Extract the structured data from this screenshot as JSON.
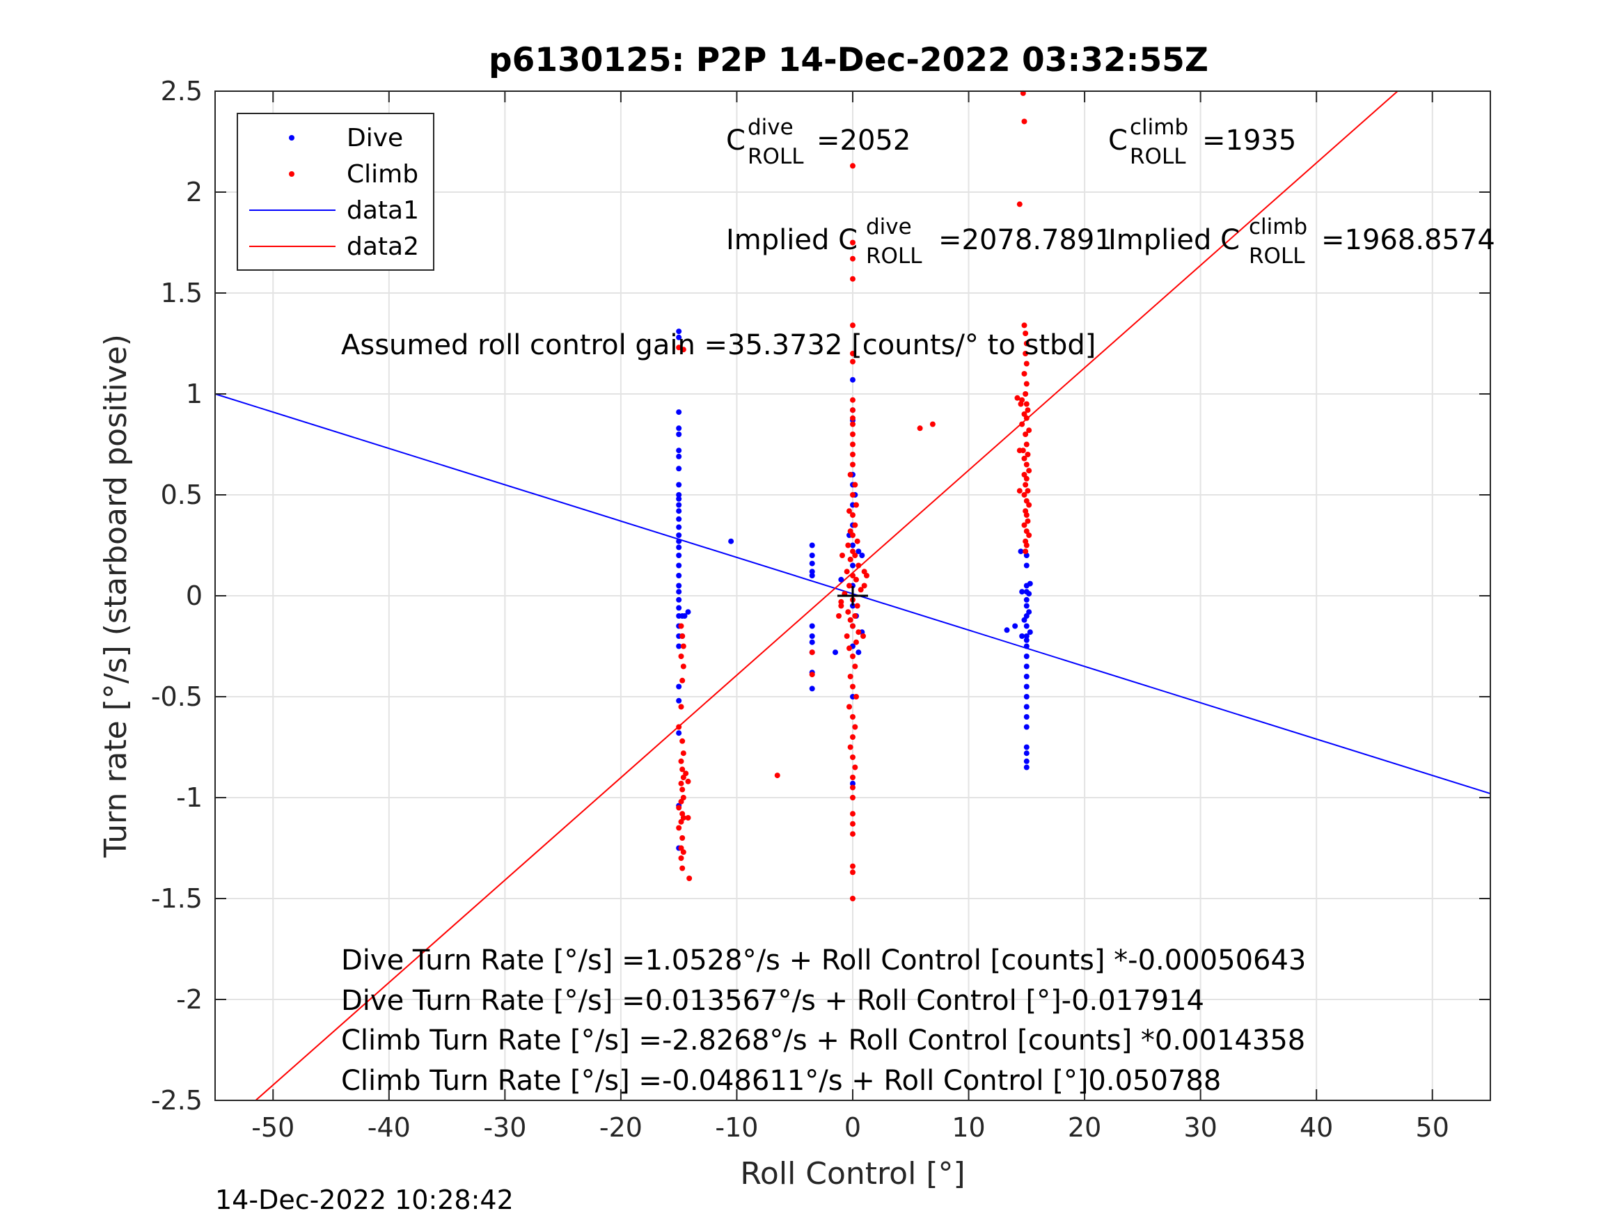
{
  "chart_data": {
    "type": "scatter",
    "title": "p6130125: P2P 14-Dec-2022 03:32:55Z",
    "xlabel": "Roll Control [°]",
    "ylabel": "Turn rate [°/s] (starboard positive)",
    "xlim": [
      -55,
      55
    ],
    "ylim": [
      -2.5,
      2.5
    ],
    "grid": true,
    "legend_position": "top-left",
    "xticks": [
      -50,
      -40,
      -30,
      -20,
      -10,
      0,
      10,
      20,
      30,
      40,
      50
    ],
    "xtick_labels": [
      "-50",
      "-40",
      "-30",
      "-20",
      "-10",
      "0",
      "10",
      "20",
      "30",
      "40",
      "50"
    ],
    "yticks": [
      -2.5,
      -2,
      -1.5,
      -1,
      -0.5,
      0,
      0.5,
      1,
      1.5,
      2,
      2.5
    ],
    "ytick_labels": [
      "-2.5",
      "-2",
      "-1.5",
      "-1",
      "-0.5",
      "0",
      "0.5",
      "1",
      "1.5",
      "2",
      "2.5"
    ],
    "series": [
      {
        "name": "Dive",
        "kind": "points",
        "color": "#0000ff",
        "points": [
          [
            -15,
            1.31
          ],
          [
            -15,
            1.28
          ],
          [
            -15,
            0.91
          ],
          [
            -15,
            0.83
          ],
          [
            -15,
            0.8
          ],
          [
            -15,
            0.72
          ],
          [
            -15,
            0.69
          ],
          [
            -15,
            0.63
          ],
          [
            -15,
            0.55
          ],
          [
            -15,
            0.5
          ],
          [
            -15,
            0.48
          ],
          [
            -15,
            0.45
          ],
          [
            -15,
            0.42
          ],
          [
            -15,
            0.38
          ],
          [
            -15,
            0.34
          ],
          [
            -15,
            0.3
          ],
          [
            -15,
            0.27
          ],
          [
            -15,
            0.24
          ],
          [
            -15,
            0.2
          ],
          [
            -15,
            0.15
          ],
          [
            -15,
            0.1
          ],
          [
            -15,
            0.05
          ],
          [
            -15,
            0.02
          ],
          [
            -15,
            -0.02
          ],
          [
            -15,
            -0.06
          ],
          [
            -15,
            -0.1
          ],
          [
            -15,
            -0.15
          ],
          [
            -15,
            -0.2
          ],
          [
            -15,
            -0.25
          ],
          [
            -14.7,
            -0.1
          ],
          [
            -14.7,
            -0.2
          ],
          [
            -15,
            -0.45
          ],
          [
            -15,
            -0.52
          ],
          [
            -15,
            -0.68
          ],
          [
            -15,
            -1.04
          ],
          [
            -15,
            -1.25
          ],
          [
            -14.5,
            -0.1
          ],
          [
            -14.2,
            -0.08
          ],
          [
            -10.5,
            0.27
          ],
          [
            -3.5,
            0.25
          ],
          [
            -3.5,
            0.2
          ],
          [
            -3.5,
            0.16
          ],
          [
            -3.5,
            0.12
          ],
          [
            -3.5,
            0.1
          ],
          [
            -3.5,
            -0.15
          ],
          [
            -3.5,
            -0.2
          ],
          [
            -3.5,
            -0.23
          ],
          [
            -3.5,
            -0.28
          ],
          [
            -3.5,
            -0.38
          ],
          [
            -3.5,
            -0.46
          ],
          [
            -1.5,
            -0.28
          ],
          [
            -1,
            0.08
          ],
          [
            0,
            1.07
          ],
          [
            0,
            0.92
          ],
          [
            0,
            0.87
          ],
          [
            0,
            0.6
          ],
          [
            0,
            0.55
          ],
          [
            0,
            0.45
          ],
          [
            0,
            0.35
          ],
          [
            0,
            0.25
          ],
          [
            0,
            0.15
          ],
          [
            0,
            0.05
          ],
          [
            0,
            -0.05
          ],
          [
            0,
            -0.15
          ],
          [
            0,
            -0.25
          ],
          [
            0,
            -0.5
          ],
          [
            0,
            -0.93
          ],
          [
            0.5,
            0.22
          ],
          [
            0.8,
            0.2
          ],
          [
            0.5,
            -0.28
          ],
          [
            0.8,
            -0.18
          ],
          [
            0.2,
            0.5
          ],
          [
            -0.3,
            0.3
          ],
          [
            0.3,
            -0.1
          ],
          [
            14.5,
            0.22
          ],
          [
            15,
            0.2
          ],
          [
            15,
            0.15
          ],
          [
            15,
            0.05
          ],
          [
            15,
            0.02
          ],
          [
            14.6,
            0.02
          ],
          [
            15.3,
            0.06
          ],
          [
            15.2,
            0.01
          ],
          [
            15,
            -0.02
          ],
          [
            15,
            -0.05
          ],
          [
            15.2,
            -0.08
          ],
          [
            15,
            -0.1
          ],
          [
            14.8,
            -0.12
          ],
          [
            15,
            -0.15
          ],
          [
            15.3,
            -0.18
          ],
          [
            15,
            -0.2
          ],
          [
            15,
            -0.22
          ],
          [
            15,
            -0.25
          ],
          [
            15,
            -0.3
          ],
          [
            15,
            -0.35
          ],
          [
            15,
            -0.4
          ],
          [
            15,
            -0.45
          ],
          [
            15,
            -0.5
          ],
          [
            15,
            -0.55
          ],
          [
            15,
            -0.6
          ],
          [
            15,
            -0.65
          ],
          [
            15,
            -0.75
          ],
          [
            15,
            -0.78
          ],
          [
            15,
            -0.82
          ],
          [
            15,
            -0.85
          ],
          [
            13.3,
            -0.17
          ],
          [
            14,
            -0.15
          ],
          [
            14.6,
            -0.2
          ]
        ]
      },
      {
        "name": "Climb",
        "kind": "points",
        "color": "#ff0000",
        "points": [
          [
            -15,
            1.23
          ],
          [
            -14.6,
            1.22
          ],
          [
            -14.8,
            -0.15
          ],
          [
            -14.7,
            -0.2
          ],
          [
            -14.6,
            -0.25
          ],
          [
            -14.8,
            -0.3
          ],
          [
            -14.6,
            -0.35
          ],
          [
            -14.7,
            -0.42
          ],
          [
            -14.8,
            -0.55
          ],
          [
            -15,
            -0.65
          ],
          [
            -14.7,
            -0.72
          ],
          [
            -14.6,
            -0.78
          ],
          [
            -14.8,
            -0.82
          ],
          [
            -14.7,
            -0.86
          ],
          [
            -14.6,
            -0.9
          ],
          [
            -14.8,
            -0.93
          ],
          [
            -14.7,
            -0.96
          ],
          [
            -14.6,
            -1.0
          ],
          [
            -14.8,
            -1.02
          ],
          [
            -15,
            -1.05
          ],
          [
            -14.7,
            -1.08
          ],
          [
            -14.6,
            -1.1
          ],
          [
            -14.8,
            -1.12
          ],
          [
            -15,
            -1.15
          ],
          [
            -14.7,
            -1.2
          ],
          [
            -14.8,
            -1.25
          ],
          [
            -14.6,
            -1.27
          ],
          [
            -14.8,
            -1.3
          ],
          [
            -14.7,
            -1.35
          ],
          [
            -14.1,
            -1.4
          ],
          [
            -14.2,
            -1.1
          ],
          [
            -14.4,
            -0.88
          ],
          [
            -14.2,
            -0.92
          ],
          [
            -6.5,
            -0.89
          ],
          [
            -3.5,
            -0.28
          ],
          [
            -3.5,
            -0.39
          ],
          [
            0,
            2.13
          ],
          [
            0,
            1.75
          ],
          [
            0,
            1.67
          ],
          [
            0,
            1.57
          ],
          [
            0,
            1.34
          ],
          [
            0,
            1.2
          ],
          [
            0,
            1.16
          ],
          [
            0,
            0.97
          ],
          [
            0,
            0.92
          ],
          [
            0,
            0.88
          ],
          [
            0,
            0.85
          ],
          [
            0,
            0.8
          ],
          [
            0,
            0.75
          ],
          [
            0,
            0.7
          ],
          [
            0,
            0.65
          ],
          [
            -0.2,
            0.6
          ],
          [
            0.2,
            0.55
          ],
          [
            0,
            0.5
          ],
          [
            0.3,
            0.45
          ],
          [
            -0.3,
            0.42
          ],
          [
            0,
            0.4
          ],
          [
            0.2,
            0.35
          ],
          [
            -0.2,
            0.32
          ],
          [
            0,
            0.3
          ],
          [
            0.4,
            0.27
          ],
          [
            -0.4,
            0.25
          ],
          [
            0,
            0.22
          ],
          [
            0.2,
            0.2
          ],
          [
            -0.2,
            0.18
          ],
          [
            0.5,
            0.15
          ],
          [
            -0.5,
            0.12
          ],
          [
            0,
            0.1
          ],
          [
            0.3,
            0.08
          ],
          [
            -0.3,
            0.05
          ],
          [
            0.7,
            0.03
          ],
          [
            -0.7,
            0.01
          ],
          [
            0,
            -0.02
          ],
          [
            0.4,
            -0.05
          ],
          [
            -0.4,
            -0.08
          ],
          [
            0.2,
            -0.1
          ],
          [
            -0.2,
            -0.12
          ],
          [
            0,
            -0.15
          ],
          [
            0.5,
            -0.18
          ],
          [
            -0.5,
            -0.2
          ],
          [
            0.3,
            -0.23
          ],
          [
            -0.3,
            -0.26
          ],
          [
            0,
            -0.3
          ],
          [
            0.2,
            -0.35
          ],
          [
            -0.2,
            -0.4
          ],
          [
            0,
            -0.45
          ],
          [
            0.3,
            -0.5
          ],
          [
            -0.3,
            -0.55
          ],
          [
            0,
            -0.6
          ],
          [
            0.2,
            -0.65
          ],
          [
            0,
            -0.7
          ],
          [
            -0.2,
            -0.75
          ],
          [
            0,
            -0.8
          ],
          [
            0.2,
            -0.85
          ],
          [
            0,
            -0.9
          ],
          [
            0,
            -0.95
          ],
          [
            0,
            -1.0
          ],
          [
            0,
            -1.08
          ],
          [
            0,
            -1.13
          ],
          [
            0,
            -1.18
          ],
          [
            0,
            -1.34
          ],
          [
            0,
            -1.37
          ],
          [
            0,
            -1.5
          ],
          [
            -1,
            -0.05
          ],
          [
            -1.2,
            -0.1
          ],
          [
            1,
            0.12
          ],
          [
            1.2,
            0.1
          ],
          [
            -0.9,
            0.2
          ],
          [
            0.9,
            -0.2
          ],
          [
            -1,
            -0.03
          ],
          [
            1,
            0.05
          ],
          [
            5.8,
            0.83
          ],
          [
            6.9,
            0.85
          ],
          [
            14.7,
            2.49
          ],
          [
            14.8,
            2.35
          ],
          [
            14.4,
            1.94
          ],
          [
            14.8,
            1.34
          ],
          [
            14.9,
            1.3
          ],
          [
            15,
            1.25
          ],
          [
            14.9,
            1.2
          ],
          [
            15,
            1.15
          ],
          [
            14.8,
            1.1
          ],
          [
            15,
            1.05
          ],
          [
            14.9,
            1.0
          ],
          [
            14.6,
            0.97
          ],
          [
            15,
            0.95
          ],
          [
            15.1,
            0.92
          ],
          [
            14.8,
            0.9
          ],
          [
            15,
            0.88
          ],
          [
            14.6,
            0.85
          ],
          [
            15.2,
            0.82
          ],
          [
            14.9,
            0.8
          ],
          [
            15,
            0.75
          ],
          [
            14.7,
            0.72
          ],
          [
            15.1,
            0.7
          ],
          [
            14.8,
            0.68
          ],
          [
            15,
            0.65
          ],
          [
            15.2,
            0.62
          ],
          [
            14.8,
            0.6
          ],
          [
            15,
            0.58
          ],
          [
            14.9,
            0.55
          ],
          [
            15.1,
            0.52
          ],
          [
            14.8,
            0.5
          ],
          [
            15,
            0.47
          ],
          [
            15.2,
            0.45
          ],
          [
            14.9,
            0.42
          ],
          [
            15,
            0.4
          ],
          [
            15.1,
            0.37
          ],
          [
            14.8,
            0.35
          ],
          [
            15,
            0.32
          ],
          [
            15.2,
            0.3
          ],
          [
            14.9,
            0.27
          ],
          [
            15,
            0.25
          ],
          [
            14.9,
            0.22
          ],
          [
            14.5,
            0.95
          ],
          [
            14.4,
            0.72
          ],
          [
            14.4,
            0.52
          ],
          [
            14.2,
            0.98
          ]
        ]
      },
      {
        "name": "data1",
        "kind": "line",
        "color": "#0000ff",
        "x": [
          -55,
          55
        ],
        "y": [
          1.0,
          -0.98
        ]
      },
      {
        "name": "data2",
        "kind": "line",
        "color": "#ff0000",
        "x": [
          -51.5,
          47
        ],
        "y": [
          -2.5,
          2.5
        ]
      }
    ],
    "annotations": {
      "c_dive": {
        "prefix": "C",
        "sup": "dive",
        "sub": "ROLL",
        "value": "=2052"
      },
      "c_climb": {
        "prefix": "C",
        "sup": "climb",
        "sub": "ROLL",
        "value": "=1935"
      },
      "implied_dive": {
        "prefix": "Implied C",
        "sup": "dive",
        "sub": "ROLL",
        "value": "=2078.7891"
      },
      "implied_climb": {
        "prefix": "Implied C",
        "sup": "climb",
        "sub": "ROLL",
        "value": "=1968.8574"
      },
      "gain": "Assumed roll control gain =35.3732 [counts/° to stbd]",
      "fits": [
        "Dive Turn Rate [°/s] =1.0528°/s + Roll Control [counts] *-0.00050643",
        "Dive Turn Rate [°/s] =0.013567°/s + Roll Control [°]-0.017914",
        "Climb Turn Rate [°/s] =-2.8268°/s + Roll Control [counts] *0.0014358",
        "Climb Turn Rate [°/s] =-0.048611°/s + Roll Control [°]0.050788"
      ]
    },
    "timestamp": "14-Dec-2022 10:28:42"
  }
}
